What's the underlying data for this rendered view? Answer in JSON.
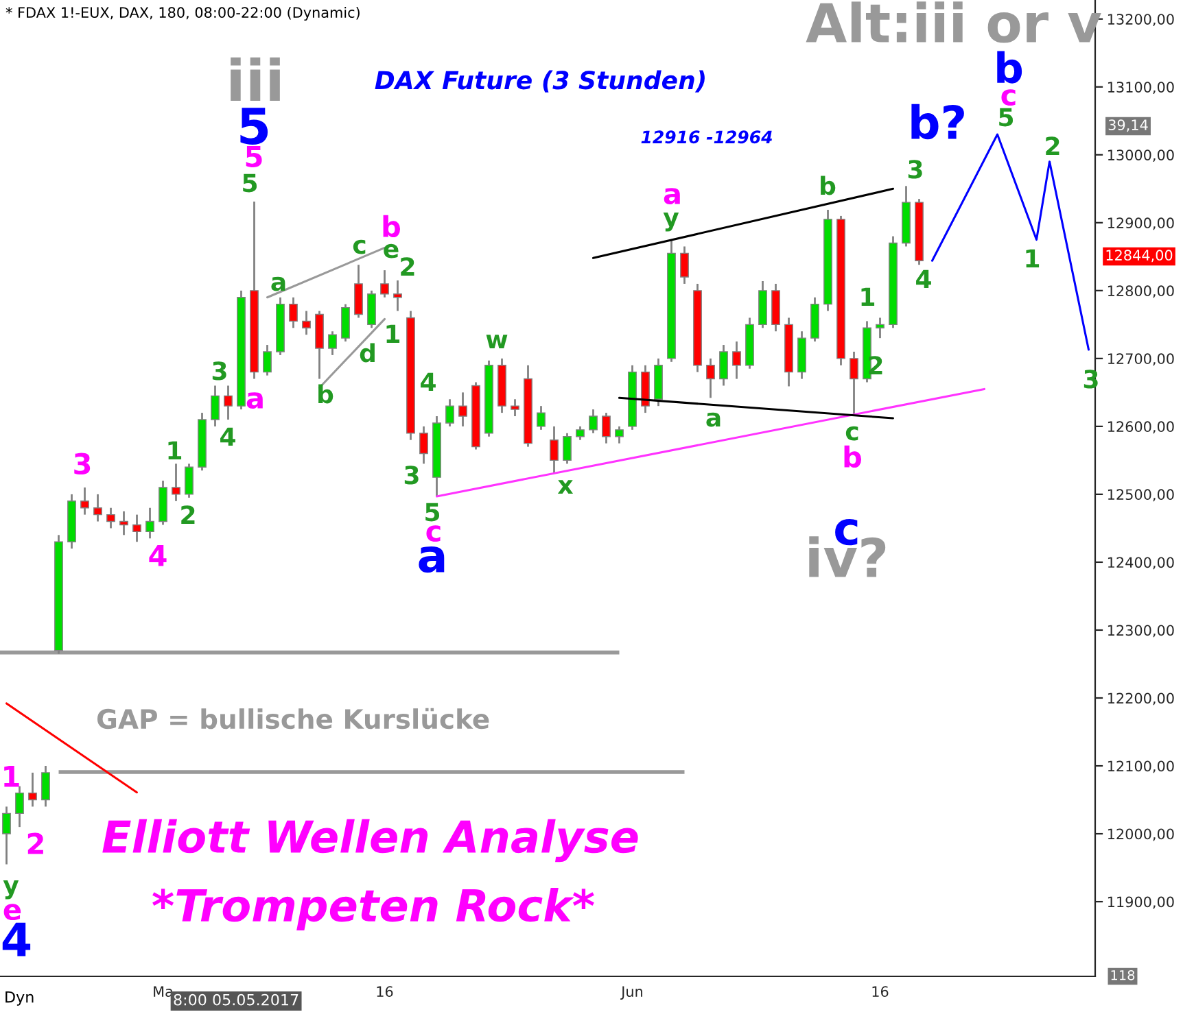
{
  "chart_data": {
    "type": "candlestick",
    "title": "DAX Future (3 Stunden)",
    "subtitle": "* FDAX 1!-EUX, DAX, 180, 08:00-22:00 (Dynamic)",
    "categories": [
      null,
      null,
      null,
      null,
      null,
      null,
      null,
      null,
      null,
      null,
      null,
      null,
      "Ma",
      null,
      null,
      null,
      null,
      null,
      null,
      null,
      null,
      null,
      null,
      null,
      null,
      null,
      null,
      null,
      null,
      "16",
      null,
      null,
      null,
      null,
      null,
      null,
      null,
      null,
      null,
      null,
      null,
      null,
      null,
      null,
      null,
      null,
      null,
      null,
      "Jun",
      null,
      null,
      null,
      null,
      null,
      null,
      null,
      null,
      null,
      null,
      null,
      null,
      null,
      null,
      null,
      null,
      null,
      null,
      "16",
      null,
      null,
      null,
      null,
      null,
      null,
      null,
      null,
      null,
      null,
      null,
      null,
      null,
      null,
      null,
      null
    ],
    "ohlc": [
      [
        12000,
        12040,
        11955,
        12030
      ],
      [
        12030,
        12070,
        12010,
        12060
      ],
      [
        12060,
        12090,
        12040,
        12050
      ],
      [
        12050,
        12100,
        12040,
        12090
      ],
      [
        12270,
        12440,
        12265,
        12430
      ],
      [
        12430,
        12500,
        12420,
        12490
      ],
      [
        12490,
        12510,
        12470,
        12480
      ],
      [
        12480,
        12500,
        12460,
        12470
      ],
      [
        12470,
        12480,
        12450,
        12460
      ],
      [
        12460,
        12475,
        12440,
        12455
      ],
      [
        12455,
        12470,
        12430,
        12445
      ],
      [
        12445,
        12480,
        12435,
        12460
      ],
      [
        12460,
        12520,
        12455,
        12510
      ],
      [
        12510,
        12545,
        12490,
        12500
      ],
      [
        12500,
        12545,
        12495,
        12540
      ],
      [
        12540,
        12620,
        12535,
        12610
      ],
      [
        12610,
        12660,
        12600,
        12645
      ],
      [
        12645,
        12660,
        12610,
        12630
      ],
      [
        12630,
        12800,
        12625,
        12790
      ],
      [
        12800,
        12931,
        12670,
        12680
      ],
      [
        12680,
        12720,
        12675,
        12710
      ],
      [
        12710,
        12790,
        12705,
        12780
      ],
      [
        12780,
        12790,
        12745,
        12755
      ],
      [
        12755,
        12770,
        12735,
        12745
      ],
      [
        12765,
        12770,
        12670,
        12715
      ],
      [
        12715,
        12740,
        12705,
        12735
      ],
      [
        12730,
        12780,
        12725,
        12775
      ],
      [
        12810,
        12838,
        12760,
        12765
      ],
      [
        12750,
        12800,
        12745,
        12795
      ],
      [
        12810,
        12830,
        12790,
        12795
      ],
      [
        12795,
        12815,
        12770,
        12790
      ],
      [
        12760,
        12770,
        12580,
        12590
      ],
      [
        12590,
        12600,
        12545,
        12560
      ],
      [
        12525,
        12615,
        12497,
        12605
      ],
      [
        12605,
        12640,
        12600,
        12630
      ],
      [
        12630,
        12650,
        12600,
        12615
      ],
      [
        12660,
        12665,
        12566,
        12570
      ],
      [
        12590,
        12697,
        12585,
        12690
      ],
      [
        12690,
        12700,
        12620,
        12630
      ],
      [
        12630,
        12640,
        12615,
        12625
      ],
      [
        12670,
        12690,
        12570,
        12575
      ],
      [
        12600,
        12630,
        12595,
        12620
      ],
      [
        12580,
        12600,
        12531,
        12550
      ],
      [
        12550,
        12590,
        12545,
        12585
      ],
      [
        12585,
        12600,
        12580,
        12595
      ],
      [
        12595,
        12625,
        12590,
        12615
      ],
      [
        12615,
        12620,
        12575,
        12585
      ],
      [
        12585,
        12600,
        12575,
        12595
      ],
      [
        12600,
        12690,
        12595,
        12680
      ],
      [
        12680,
        12690,
        12620,
        12630
      ],
      [
        12640,
        12700,
        12630,
        12690
      ],
      [
        12700,
        12875,
        12695,
        12855
      ],
      [
        12855,
        12865,
        12810,
        12820
      ],
      [
        12800,
        12810,
        12680,
        12690
      ],
      [
        12690,
        12700,
        12642,
        12670
      ],
      [
        12670,
        12720,
        12660,
        12710
      ],
      [
        12710,
        12725,
        12670,
        12690
      ],
      [
        12690,
        12760,
        12685,
        12750
      ],
      [
        12750,
        12814,
        12745,
        12800
      ],
      [
        12800,
        12810,
        12740,
        12750
      ],
      [
        12750,
        12760,
        12659,
        12680
      ],
      [
        12680,
        12740,
        12670,
        12730
      ],
      [
        12730,
        12790,
        12725,
        12780
      ],
      [
        12780,
        12919,
        12770,
        12905
      ],
      [
        12905,
        12910,
        12690,
        12700
      ],
      [
        12700,
        12710,
        12616,
        12670
      ],
      [
        12670,
        12755,
        12665,
        12745
      ],
      [
        12745,
        12760,
        12730,
        12750
      ],
      [
        12750,
        12880,
        12745,
        12870
      ],
      [
        12870,
        12954,
        12865,
        12930
      ],
      [
        12930,
        12935,
        12838,
        12844
      ],
      null,
      null,
      null,
      null,
      null,
      null,
      null,
      null,
      null,
      null,
      null,
      null,
      null
    ],
    "series": [
      {
        "type": "line",
        "color": "#0000ff",
        "values": [
          null,
          null,
          null,
          null,
          null,
          null,
          null,
          null,
          null,
          null,
          null,
          null,
          null,
          null,
          null,
          null,
          null,
          null,
          null,
          null,
          null,
          null,
          null,
          null,
          null,
          null,
          null,
          null,
          null,
          null,
          null,
          null,
          null,
          null,
          null,
          null,
          null,
          null,
          null,
          null,
          null,
          null,
          null,
          null,
          null,
          null,
          null,
          null,
          null,
          null,
          null,
          null,
          null,
          null,
          null,
          null,
          null,
          null,
          null,
          null,
          null,
          null,
          null,
          null,
          null,
          null,
          null,
          null,
          null,
          null,
          null,
          12844,
          null,
          null,
          null,
          null,
          13030,
          null,
          null,
          12875,
          12990,
          null,
          null,
          12713
        ]
      },
      {
        "type": "line",
        "color": "#ff33ff",
        "values": [
          null,
          null,
          null,
          null,
          null,
          null,
          null,
          null,
          null,
          null,
          null,
          null,
          null,
          null,
          null,
          null,
          null,
          null,
          null,
          null,
          null,
          null,
          null,
          null,
          null,
          null,
          null,
          null,
          null,
          null,
          null,
          null,
          null,
          12497,
          null,
          null,
          null,
          null,
          null,
          null,
          null,
          null,
          null,
          null,
          null,
          null,
          null,
          null,
          null,
          null,
          null,
          null,
          null,
          null,
          null,
          null,
          null,
          null,
          null,
          null,
          null,
          null,
          null,
          null,
          null,
          null,
          null,
          null,
          null,
          null,
          null,
          null,
          null,
          null,
          null,
          12655,
          null,
          null,
          null,
          null,
          null,
          null,
          null,
          null
        ]
      },
      {
        "type": "line",
        "color": "#000000",
        "values": [
          null,
          null,
          null,
          null,
          null,
          null,
          null,
          null,
          null,
          null,
          null,
          null,
          null,
          null,
          null,
          null,
          null,
          null,
          null,
          null,
          null,
          null,
          null,
          null,
          null,
          null,
          null,
          null,
          null,
          null,
          null,
          null,
          null,
          null,
          null,
          null,
          null,
          null,
          null,
          null,
          null,
          null,
          null,
          null,
          null,
          12848,
          null,
          null,
          null,
          null,
          null,
          null,
          null,
          null,
          null,
          null,
          null,
          null,
          null,
          null,
          null,
          null,
          null,
          null,
          null,
          null,
          null,
          null,
          12950,
          null,
          null,
          null,
          null,
          null,
          null,
          null,
          null,
          null,
          null,
          null,
          null,
          null,
          null,
          null
        ]
      },
      {
        "type": "line",
        "color": "#000000",
        "values": [
          null,
          null,
          null,
          null,
          null,
          null,
          null,
          null,
          null,
          null,
          null,
          null,
          null,
          null,
          null,
          null,
          null,
          null,
          null,
          null,
          null,
          null,
          null,
          null,
          null,
          null,
          null,
          null,
          null,
          null,
          null,
          null,
          null,
          null,
          null,
          null,
          null,
          null,
          null,
          null,
          null,
          null,
          null,
          null,
          null,
          null,
          null,
          12642,
          null,
          null,
          null,
          null,
          null,
          null,
          null,
          null,
          null,
          null,
          null,
          null,
          null,
          null,
          null,
          null,
          null,
          null,
          null,
          null,
          12612,
          null,
          null,
          null,
          null,
          null,
          null,
          null,
          null,
          null,
          null,
          null,
          null,
          null,
          null,
          null
        ]
      },
      {
        "type": "line",
        "color": "#999999",
        "values": [
          null,
          null,
          null,
          null,
          null,
          null,
          null,
          null,
          null,
          null,
          null,
          null,
          null,
          null,
          null,
          null,
          null,
          null,
          null,
          null,
          12790,
          null,
          null,
          null,
          null,
          null,
          null,
          null,
          null,
          12863,
          null,
          null,
          null,
          null,
          null,
          null,
          null,
          null,
          null,
          null,
          null,
          null,
          null,
          null,
          null,
          null,
          null,
          null,
          null,
          null,
          null,
          null,
          null,
          null,
          null,
          null,
          null,
          null,
          null,
          null,
          null,
          null,
          null,
          null,
          null,
          null,
          null,
          null,
          null,
          null,
          null,
          null,
          null,
          null,
          null,
          null,
          null,
          null,
          null,
          null,
          null,
          null,
          null,
          null
        ]
      },
      {
        "type": "line",
        "color": "#999999",
        "values": [
          null,
          null,
          null,
          null,
          null,
          null,
          null,
          null,
          null,
          null,
          null,
          null,
          null,
          null,
          null,
          null,
          null,
          null,
          null,
          null,
          null,
          null,
          null,
          null,
          12657,
          null,
          null,
          null,
          null,
          12758,
          null,
          null,
          null,
          null,
          null,
          null,
          null,
          null,
          null,
          null,
          null,
          null,
          null,
          null,
          null,
          null,
          null,
          null,
          null,
          null,
          null,
          null,
          null,
          null,
          null,
          null,
          null,
          null,
          null,
          null,
          null,
          null,
          null,
          null,
          null,
          null,
          null,
          null,
          null,
          null,
          null,
          null,
          null,
          null,
          null,
          null,
          null,
          null,
          null,
          null,
          null,
          null,
          null,
          null
        ]
      },
      {
        "type": "line",
        "color": "#ff0000",
        "values": [
          12192,
          null,
          null,
          null,
          null,
          null,
          null,
          null,
          null,
          null,
          12061,
          null,
          null,
          null,
          null,
          null,
          null,
          null,
          null,
          null,
          null,
          null,
          null,
          null,
          null,
          null,
          null,
          null,
          null,
          null,
          null,
          null,
          null,
          null,
          null,
          null,
          null,
          null,
          null,
          null,
          null,
          null,
          null,
          null,
          null,
          null,
          null,
          null,
          null,
          null,
          null,
          null,
          null,
          null,
          null,
          null,
          null,
          null,
          null,
          null,
          null,
          null,
          null,
          null,
          null,
          null,
          null,
          null,
          null,
          null,
          null,
          null,
          null,
          null,
          null,
          null,
          null,
          null,
          null,
          null,
          null,
          null,
          null,
          null
        ]
      }
    ],
    "ref_lines": [
      {
        "axis": "y",
        "value": 12267,
        "color": "#999999"
      },
      {
        "axis": "y",
        "value": 12091,
        "color": "#999999"
      }
    ],
    "ylim": [
      11790,
      13228
    ],
    "yticks": [
      {
        "value": 11900,
        "label": "11900,00"
      },
      {
        "value": 12000,
        "label": "12000,00"
      },
      {
        "value": 12100,
        "label": "12100,00"
      },
      {
        "value": 12200,
        "label": "12200,00"
      },
      {
        "value": 12300,
        "label": "12300,00"
      },
      {
        "value": 12400,
        "label": "12400,00"
      },
      {
        "value": 12500,
        "label": "12500,00"
      },
      {
        "value": 12600,
        "label": "12600,00"
      },
      {
        "value": 12700,
        "label": "12700,00"
      },
      {
        "value": 12800,
        "label": "12800,00"
      },
      {
        "value": 12900,
        "label": "12900,00"
      },
      {
        "value": 13000,
        "label": "13000,00"
      },
      {
        "value": 13100,
        "label": "13100,00"
      },
      {
        "value": 13200,
        "label": "13200,00"
      }
    ],
    "annotations": [
      "iii",
      "Alt:iii or v",
      "iv?",
      "12916 -12964",
      "5",
      "b?",
      "b",
      "a",
      "c",
      "4",
      "5",
      "b",
      "a",
      "3",
      "4",
      "c",
      "a",
      "b",
      "c",
      "1",
      "2",
      "e",
      "5",
      "3",
      "4",
      "1",
      "2",
      "a",
      "b",
      "c",
      "e",
      "2",
      "d",
      "1",
      "4",
      "3",
      "5",
      "w",
      "x",
      "y",
      "a",
      "b",
      "c",
      "3",
      "1",
      "2",
      "4",
      "5",
      "1",
      "2",
      "3",
      "y",
      "GAP = bullische Kurslücke",
      "Elliott Wellen Analyse",
      "*Trompeten Rock*",
      "39,14",
      "12844,00",
      "118",
      "Dyn",
      "8:00 05.05.2017"
    ]
  }
}
